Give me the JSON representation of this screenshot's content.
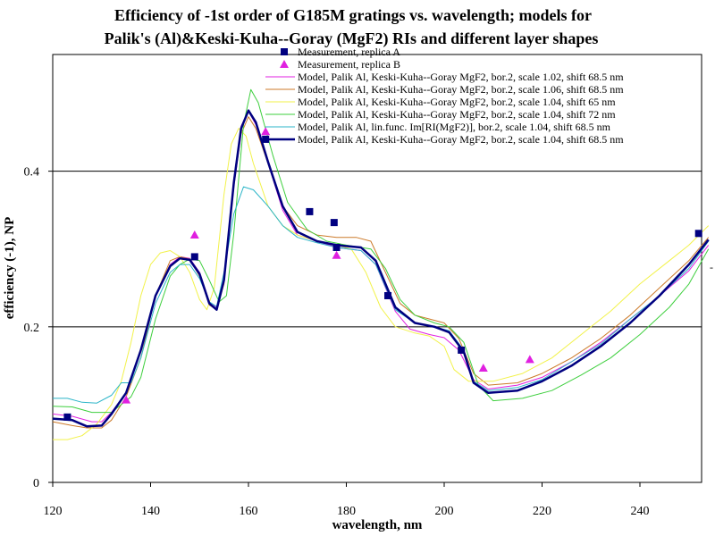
{
  "chart_data": {
    "type": "line",
    "title": [
      "Efficiency of -1st order of G185M gratings vs. wavelength; models for",
      "Palik's (Al)&Keski-Kuha--Goray (MgF2) RIs and different layer shapes"
    ],
    "xlabel": "wavelength, nm",
    "ylabel": "efficiency (-1), NP",
    "xlim": [
      120,
      254
    ],
    "ylim": [
      0,
      0.55
    ],
    "xticks": [
      "120",
      "140",
      "160",
      "180",
      "200",
      "220",
      "240"
    ],
    "yticks": [
      "0",
      "0.2",
      "0.4"
    ],
    "gridlines_y": [
      0.2,
      0.4
    ],
    "legend_position": "top-right",
    "side_mark": "-",
    "colors": {
      "meas_a": "#000080",
      "meas_b": "#e020e0",
      "model_102": "#e020e0",
      "model_106": "#cc7a2a",
      "model_65": "#f2f24a",
      "model_72": "#3ecf3e",
      "model_lin": "#2bb5c8",
      "model_bold": "#000080"
    },
    "series": [
      {
        "name": "Measurement, replica A",
        "kind": "scatter",
        "marker": "square",
        "color_key": "meas_a",
        "points": [
          [
            123,
            0.084
          ],
          [
            149,
            0.29
          ],
          [
            163.5,
            0.441
          ],
          [
            172.5,
            0.348
          ],
          [
            177.5,
            0.334
          ],
          [
            178,
            0.302
          ],
          [
            188.5,
            0.24
          ],
          [
            203.5,
            0.17
          ],
          [
            252,
            0.32
          ]
        ]
      },
      {
        "name": "Measurement, replica B",
        "kind": "scatter",
        "marker": "triangle",
        "color_key": "meas_b",
        "points": [
          [
            135,
            0.106
          ],
          [
            149,
            0.318
          ],
          [
            163.5,
            0.451
          ],
          [
            178,
            0.292
          ],
          [
            208,
            0.147
          ],
          [
            217.5,
            0.158
          ]
        ]
      },
      {
        "name": "Model, Palik Al, Keski-Kuha--Goray MgF2, bor.2, scale 1.02, shift 68.5 nm",
        "kind": "line",
        "color_key": "model_102",
        "width": 1,
        "points": [
          [
            120,
            0.088
          ],
          [
            124,
            0.085
          ],
          [
            128,
            0.078
          ],
          [
            130,
            0.078
          ],
          [
            132,
            0.09
          ],
          [
            135,
            0.115
          ],
          [
            138,
            0.17
          ],
          [
            141,
            0.24
          ],
          [
            144,
            0.28
          ],
          [
            146,
            0.29
          ],
          [
            148,
            0.288
          ],
          [
            150,
            0.27
          ],
          [
            152,
            0.232
          ],
          [
            153.5,
            0.225
          ],
          [
            155,
            0.26
          ],
          [
            157,
            0.39
          ],
          [
            158.5,
            0.458
          ],
          [
            160,
            0.477
          ],
          [
            161.5,
            0.46
          ],
          [
            164,
            0.41
          ],
          [
            167,
            0.35
          ],
          [
            170,
            0.318
          ],
          [
            174,
            0.31
          ],
          [
            178,
            0.302
          ],
          [
            183,
            0.298
          ],
          [
            186,
            0.28
          ],
          [
            190,
            0.22
          ],
          [
            193,
            0.197
          ],
          [
            197,
            0.19
          ],
          [
            200,
            0.186
          ],
          [
            203,
            0.17
          ],
          [
            206,
            0.132
          ],
          [
            209,
            0.12
          ],
          [
            215,
            0.125
          ],
          [
            220,
            0.135
          ],
          [
            226,
            0.155
          ],
          [
            232,
            0.18
          ],
          [
            238,
            0.21
          ],
          [
            244,
            0.24
          ],
          [
            250,
            0.272
          ],
          [
            254,
            0.305
          ]
        ]
      },
      {
        "name": "Model, Palik Al, Keski-Kuha--Goray MgF2, bor.2, scale 1.06, shift 68.5 nm",
        "kind": "line",
        "color_key": "model_106",
        "width": 1,
        "points": [
          [
            120,
            0.078
          ],
          [
            124,
            0.073
          ],
          [
            127,
            0.07
          ],
          [
            130,
            0.07
          ],
          [
            132,
            0.08
          ],
          [
            135,
            0.11
          ],
          [
            138,
            0.16
          ],
          [
            141,
            0.24
          ],
          [
            144,
            0.285
          ],
          [
            146,
            0.29
          ],
          [
            148,
            0.287
          ],
          [
            150,
            0.265
          ],
          [
            152,
            0.228
          ],
          [
            153.5,
            0.222
          ],
          [
            155,
            0.255
          ],
          [
            157,
            0.38
          ],
          [
            158.5,
            0.448
          ],
          [
            160,
            0.47
          ],
          [
            161.5,
            0.455
          ],
          [
            164,
            0.41
          ],
          [
            167,
            0.355
          ],
          [
            170,
            0.33
          ],
          [
            174,
            0.318
          ],
          [
            178,
            0.315
          ],
          [
            182,
            0.315
          ],
          [
            185,
            0.31
          ],
          [
            188,
            0.27
          ],
          [
            191,
            0.23
          ],
          [
            194,
            0.215
          ],
          [
            197,
            0.21
          ],
          [
            200,
            0.205
          ],
          [
            203,
            0.185
          ],
          [
            206,
            0.14
          ],
          [
            209,
            0.125
          ],
          [
            215,
            0.128
          ],
          [
            220,
            0.14
          ],
          [
            226,
            0.16
          ],
          [
            232,
            0.185
          ],
          [
            238,
            0.215
          ],
          [
            244,
            0.25
          ],
          [
            250,
            0.285
          ],
          [
            254,
            0.315
          ]
        ]
      },
      {
        "name": "Model, Palik Al, Keski-Kuha--Goray MgF2, bor.2, scale 1.04, shift 65 nm",
        "kind": "line",
        "color_key": "model_65",
        "width": 1,
        "points": [
          [
            120,
            0.055
          ],
          [
            123,
            0.055
          ],
          [
            126,
            0.06
          ],
          [
            129,
            0.075
          ],
          [
            132,
            0.1
          ],
          [
            134,
            0.13
          ],
          [
            136,
            0.18
          ],
          [
            138,
            0.24
          ],
          [
            140,
            0.28
          ],
          [
            142,
            0.295
          ],
          [
            144,
            0.298
          ],
          [
            146,
            0.29
          ],
          [
            148,
            0.27
          ],
          [
            150,
            0.235
          ],
          [
            151.5,
            0.222
          ],
          [
            153,
            0.25
          ],
          [
            155,
            0.37
          ],
          [
            156.5,
            0.435
          ],
          [
            158,
            0.455
          ],
          [
            159.5,
            0.445
          ],
          [
            161,
            0.41
          ],
          [
            164,
            0.355
          ],
          [
            167,
            0.33
          ],
          [
            170,
            0.318
          ],
          [
            174,
            0.31
          ],
          [
            178,
            0.305
          ],
          [
            181,
            0.3
          ],
          [
            184,
            0.27
          ],
          [
            187,
            0.225
          ],
          [
            190,
            0.2
          ],
          [
            194,
            0.192
          ],
          [
            197,
            0.188
          ],
          [
            200,
            0.175
          ],
          [
            202,
            0.145
          ],
          [
            205,
            0.13
          ],
          [
            210,
            0.13
          ],
          [
            216,
            0.14
          ],
          [
            222,
            0.16
          ],
          [
            228,
            0.19
          ],
          [
            234,
            0.22
          ],
          [
            240,
            0.255
          ],
          [
            246,
            0.285
          ],
          [
            250,
            0.305
          ],
          [
            254,
            0.33
          ]
        ]
      },
      {
        "name": "Model, Palik Al, Keski-Kuha--Goray MgF2, bor.2, scale 1.04, shift 72 nm",
        "kind": "line",
        "color_key": "model_72",
        "width": 1,
        "points": [
          [
            120,
            0.098
          ],
          [
            124,
            0.097
          ],
          [
            128,
            0.09
          ],
          [
            132,
            0.09
          ],
          [
            134,
            0.1
          ],
          [
            136,
            0.11
          ],
          [
            138,
            0.135
          ],
          [
            141,
            0.21
          ],
          [
            144,
            0.265
          ],
          [
            146,
            0.28
          ],
          [
            148,
            0.287
          ],
          [
            150,
            0.285
          ],
          [
            152,
            0.26
          ],
          [
            154,
            0.232
          ],
          [
            155.5,
            0.24
          ],
          [
            157,
            0.32
          ],
          [
            159,
            0.46
          ],
          [
            160.5,
            0.505
          ],
          [
            162,
            0.488
          ],
          [
            165,
            0.42
          ],
          [
            168,
            0.36
          ],
          [
            172,
            0.325
          ],
          [
            176,
            0.31
          ],
          [
            180,
            0.305
          ],
          [
            185,
            0.3
          ],
          [
            188,
            0.275
          ],
          [
            191,
            0.235
          ],
          [
            194,
            0.215
          ],
          [
            198,
            0.205
          ],
          [
            201,
            0.2
          ],
          [
            204,
            0.18
          ],
          [
            207,
            0.125
          ],
          [
            210,
            0.105
          ],
          [
            216,
            0.108
          ],
          [
            222,
            0.118
          ],
          [
            228,
            0.138
          ],
          [
            234,
            0.16
          ],
          [
            240,
            0.19
          ],
          [
            246,
            0.225
          ],
          [
            250,
            0.255
          ],
          [
            254,
            0.3
          ]
        ]
      },
      {
        "name": "Model, Palik Al, lin.func. Im[RI(MgF2)], bor.2, scale 1.04, shift 68.5 nm",
        "kind": "line",
        "color_key": "model_lin",
        "width": 1,
        "points": [
          [
            120,
            0.108
          ],
          [
            123,
            0.108
          ],
          [
            126,
            0.103
          ],
          [
            129,
            0.102
          ],
          [
            132,
            0.112
          ],
          [
            134,
            0.128
          ],
          [
            136,
            0.128
          ],
          [
            138,
            0.16
          ],
          [
            141,
            0.23
          ],
          [
            144,
            0.27
          ],
          [
            146,
            0.28
          ],
          [
            148,
            0.28
          ],
          [
            150,
            0.262
          ],
          [
            152,
            0.232
          ],
          [
            153.5,
            0.226
          ],
          [
            155,
            0.27
          ],
          [
            157,
            0.345
          ],
          [
            159,
            0.38
          ],
          [
            161,
            0.376
          ],
          [
            164,
            0.355
          ],
          [
            167,
            0.33
          ],
          [
            170,
            0.315
          ],
          [
            174,
            0.308
          ],
          [
            178,
            0.302
          ],
          [
            183,
            0.298
          ],
          [
            186,
            0.28
          ],
          [
            190,
            0.222
          ],
          [
            194,
            0.205
          ],
          [
            198,
            0.2
          ],
          [
            201,
            0.195
          ],
          [
            204,
            0.17
          ],
          [
            206,
            0.13
          ],
          [
            209,
            0.118
          ],
          [
            215,
            0.122
          ],
          [
            220,
            0.132
          ],
          [
            226,
            0.155
          ],
          [
            232,
            0.178
          ],
          [
            238,
            0.21
          ],
          [
            244,
            0.24
          ],
          [
            250,
            0.275
          ],
          [
            254,
            0.31
          ]
        ]
      },
      {
        "name": "Model, Palik Al, Keski-Kuha--Goray MgF2, bor.2, scale 1.04, shift 68.5 nm",
        "kind": "line",
        "color_key": "model_bold",
        "width": 2.5,
        "points": [
          [
            120,
            0.082
          ],
          [
            124,
            0.08
          ],
          [
            127,
            0.072
          ],
          [
            130,
            0.073
          ],
          [
            132,
            0.088
          ],
          [
            135,
            0.115
          ],
          [
            138,
            0.17
          ],
          [
            141,
            0.24
          ],
          [
            144,
            0.278
          ],
          [
            146,
            0.288
          ],
          [
            148,
            0.286
          ],
          [
            150,
            0.268
          ],
          [
            152,
            0.23
          ],
          [
            153.5,
            0.222
          ],
          [
            155,
            0.26
          ],
          [
            157,
            0.385
          ],
          [
            158.5,
            0.455
          ],
          [
            160,
            0.478
          ],
          [
            161.5,
            0.463
          ],
          [
            164,
            0.412
          ],
          [
            167,
            0.355
          ],
          [
            170,
            0.322
          ],
          [
            174,
            0.31
          ],
          [
            178,
            0.305
          ],
          [
            183,
            0.302
          ],
          [
            186,
            0.285
          ],
          [
            190,
            0.225
          ],
          [
            194,
            0.205
          ],
          [
            198,
            0.2
          ],
          [
            201,
            0.193
          ],
          [
            204,
            0.168
          ],
          [
            206,
            0.128
          ],
          [
            209,
            0.115
          ],
          [
            215,
            0.118
          ],
          [
            220,
            0.13
          ],
          [
            226,
            0.15
          ],
          [
            232,
            0.175
          ],
          [
            238,
            0.205
          ],
          [
            244,
            0.24
          ],
          [
            250,
            0.28
          ],
          [
            254,
            0.312
          ]
        ]
      }
    ]
  }
}
